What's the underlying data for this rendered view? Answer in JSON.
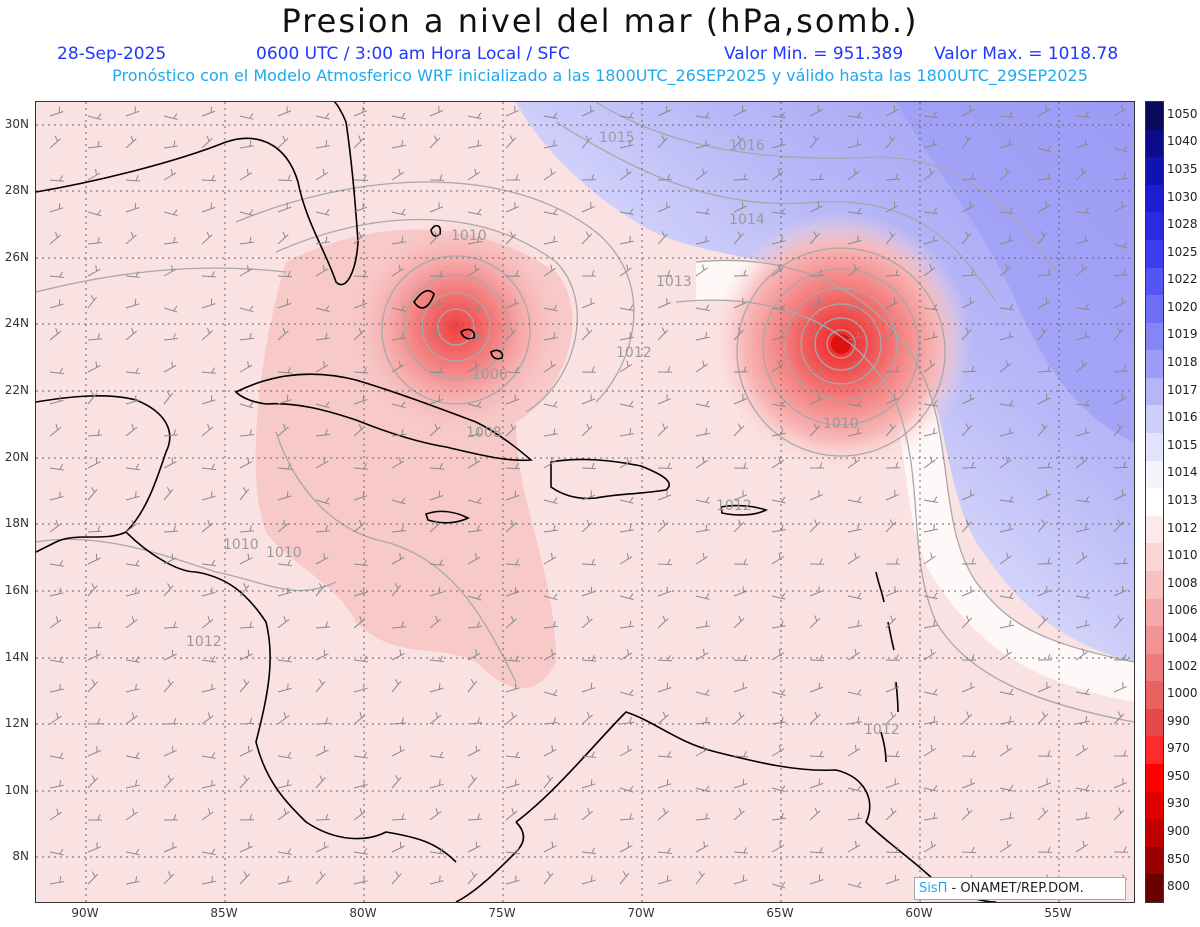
{
  "header": {
    "title": "Presion a nivel del mar (hPa,somb.)",
    "date": "28-Sep-2025",
    "time_info": "0600 UTC / 3:00 am Hora Local / SFC",
    "valor_min": "Valor Min. = 951.389",
    "valor_max": "Valor Max. = 1018.78",
    "forecast_info": "Pronóstico con el Modelo Atmosferico WRF inicializado a las 1800UTC_26SEP2025 y válido hasta las  1800UTC_29SEP2025"
  },
  "map": {
    "lat_labels": [
      "30N",
      "28N",
      "26N",
      "24N",
      "22N",
      "20N",
      "18N",
      "16N",
      "14N",
      "12N",
      "10N",
      "8N"
    ],
    "lon_labels": [
      "90W",
      "85W",
      "80W",
      "75W",
      "70W",
      "65W",
      "60W",
      "55W"
    ],
    "contour_labels": [
      "1015",
      "1016",
      "1014",
      "1013",
      "1010",
      "1012",
      "1006",
      "1008",
      "1010",
      "1012",
      "1010",
      "1010",
      "1012",
      "1012"
    ],
    "credit_sis": "SisΠ",
    "credit_text": " - ONAMET/REP.DOM."
  },
  "colorbar": {
    "labels": [
      "1050",
      "1040",
      "1035",
      "1030",
      "1028",
      "1025",
      "1022",
      "1020",
      "1019",
      "1018",
      "1017",
      "1016",
      "1015",
      "1014",
      "1013",
      "1012",
      "1010",
      "1008",
      "1006",
      "1004",
      "1002",
      "1000",
      "990",
      "970",
      "950",
      "930",
      "900",
      "850",
      "800"
    ],
    "colors": [
      "#0a0a5a",
      "#0c0c8a",
      "#1212b0",
      "#1c1cd0",
      "#2a2ae0",
      "#3c3cf0",
      "#5555f5",
      "#6e6ef6",
      "#8585f6",
      "#9d9df7",
      "#b5b5f8",
      "#cdcdf9",
      "#e2e2fb",
      "#f4f4fd",
      "#ffffff",
      "#fde9e9",
      "#fbd5d5",
      "#f8c0c0",
      "#f4aaaa",
      "#f09393",
      "#ec7b7b",
      "#e86262",
      "#e44848",
      "#ff2b2b",
      "#ff0000",
      "#e00000",
      "#c00000",
      "#9a0000",
      "#6a0000"
    ]
  }
}
